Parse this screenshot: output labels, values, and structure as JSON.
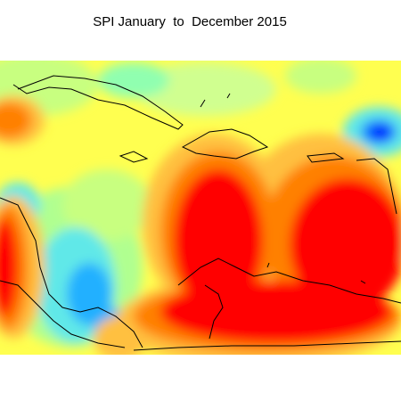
{
  "title": "SPI January  to  December 2015"
}
